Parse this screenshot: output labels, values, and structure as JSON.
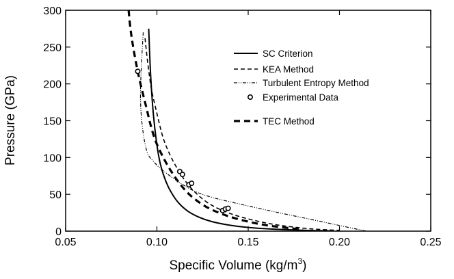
{
  "chart_data": {
    "type": "line",
    "title": "",
    "xlabel": "Specific Volume (kg/m",
    "xlabel_sup": "3",
    "xlabel_close": ")",
    "ylabel": "Pressure (GPa)",
    "xlim": [
      0.05,
      0.25
    ],
    "ylim": [
      0,
      300
    ],
    "xticks": [
      0.05,
      0.1,
      0.15,
      0.2,
      0.25
    ],
    "xtick_labels": [
      "0.05",
      "0.10",
      "0.15",
      "0.20",
      "0.25"
    ],
    "yticks": [
      0,
      50,
      100,
      150,
      200,
      250,
      300
    ],
    "ytick_labels": [
      "0",
      "50",
      "100",
      "150",
      "200",
      "250",
      "300"
    ],
    "grid": false,
    "legend_position": "top-right",
    "series": [
      {
        "name": "SC Criterion",
        "style": "solid",
        "x": [
          0.0955,
          0.0965,
          0.098,
          0.1,
          0.102,
          0.105,
          0.108,
          0.112,
          0.117,
          0.123,
          0.13,
          0.14,
          0.15,
          0.165,
          0.18,
          0.195
        ],
        "y": [
          275,
          215,
          160,
          117,
          90,
          67,
          52,
          38,
          27,
          19,
          13,
          8,
          5,
          2.5,
          1.2,
          0.4
        ]
      },
      {
        "name": "KEA Method",
        "style": "dashed",
        "x": [
          0.0935,
          0.095,
          0.097,
          0.1,
          0.103,
          0.106,
          0.11,
          0.115,
          0.12,
          0.127,
          0.135,
          0.145,
          0.158,
          0.17,
          0.185,
          0.2
        ],
        "y": [
          262,
          228,
          193,
          160,
          130,
          110,
          90,
          70,
          55,
          40,
          29,
          20,
          12,
          7,
          3,
          1
        ]
      },
      {
        "name": "Turbulent Entropy Method",
        "style": "dashdotdot",
        "x": [
          0.0925,
          0.0915,
          0.091,
          0.0915,
          0.093,
          0.095,
          0.098,
          0.102,
          0.11,
          0.12,
          0.13,
          0.145,
          0.165,
          0.19,
          0.205,
          0.215
        ],
        "y": [
          270,
          225,
          185,
          155,
          125,
          105,
          95,
          85,
          70,
          55,
          46,
          37,
          26,
          13,
          5,
          0
        ]
      },
      {
        "name": "TEC Method",
        "style": "thickdash",
        "x": [
          0.0845,
          0.0855,
          0.087,
          0.089,
          0.091,
          0.094,
          0.097,
          0.1,
          0.105,
          0.11,
          0.115,
          0.12,
          0.127,
          0.135,
          0.145,
          0.16,
          0.18
        ],
        "y": [
          300,
          275,
          250,
          223,
          200,
          170,
          140,
          118,
          93,
          73,
          57,
          45,
          33,
          24,
          16,
          8,
          2
        ]
      }
    ],
    "experimental_data": {
      "name": "Experimental Data",
      "x": [
        0.0895,
        0.1125,
        0.114,
        0.1175,
        0.119,
        0.136,
        0.1375,
        0.139
      ],
      "y": [
        217,
        81,
        77,
        63,
        65,
        28,
        30,
        31
      ]
    },
    "legend": [
      {
        "label": "SC Criterion",
        "style": "solid"
      },
      {
        "label": "KEA Method",
        "style": "dashed"
      },
      {
        "label": "Turbulent Entropy Method",
        "style": "dashdotdot"
      },
      {
        "label": "Experimental Data",
        "style": "marker"
      },
      {
        "label": "TEC Method",
        "style": "thickdash"
      }
    ]
  }
}
